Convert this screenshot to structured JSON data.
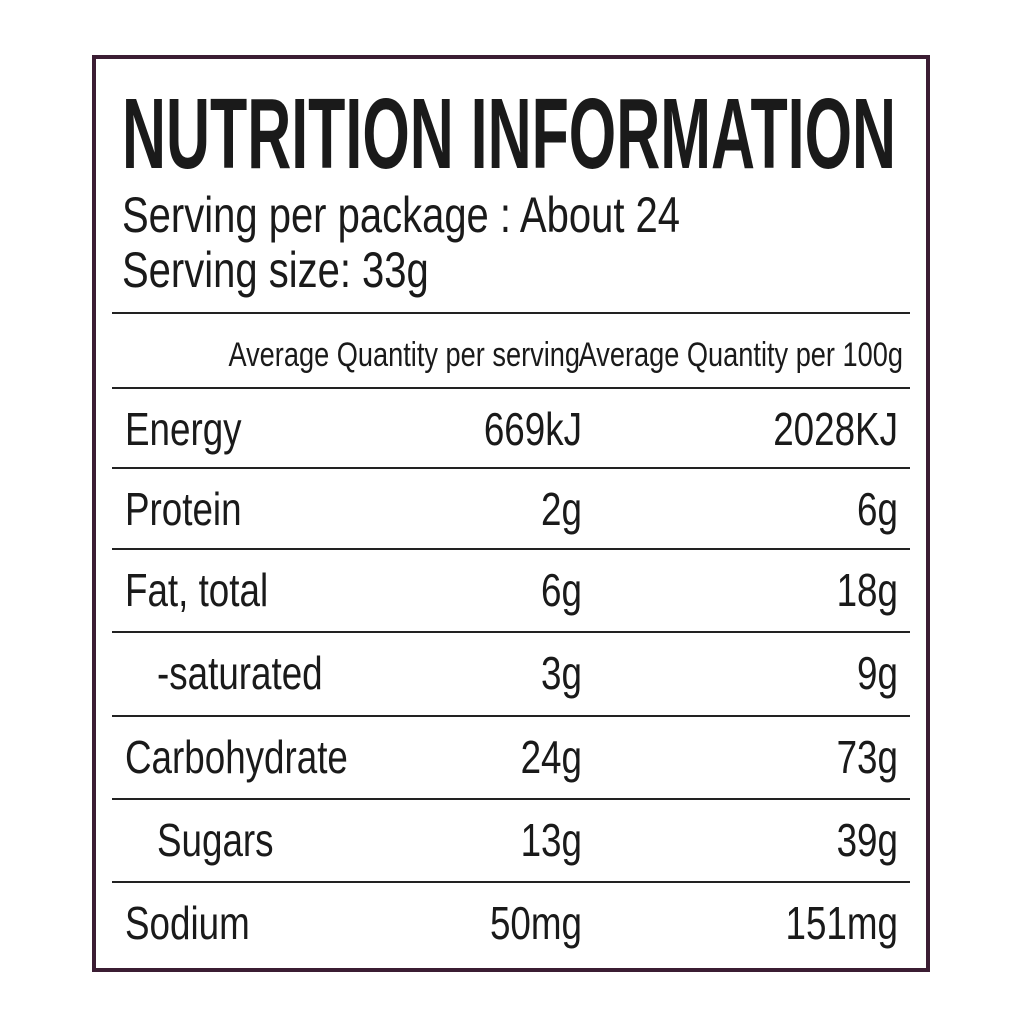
{
  "header": {
    "title": "NUTRITION INFORMATION",
    "servings_per_package": "Serving per package : About 24",
    "serving_size": "Serving size: 33g"
  },
  "table": {
    "columns": [
      "Average Quantity per serving",
      "Average Quantity per 100g"
    ],
    "rows": [
      [
        "Energy",
        "669kJ",
        "2028KJ"
      ],
      [
        "Protein",
        "2g",
        "6g"
      ],
      [
        "Fat, total",
        "6g",
        "18g"
      ],
      [
        "-saturated",
        "3g",
        "9g"
      ],
      [
        "Carbohydrate",
        "24g",
        "73g"
      ],
      [
        "Sugars",
        "13g",
        "39g"
      ],
      [
        "Sodium",
        "50mg",
        "151mg"
      ]
    ]
  }
}
